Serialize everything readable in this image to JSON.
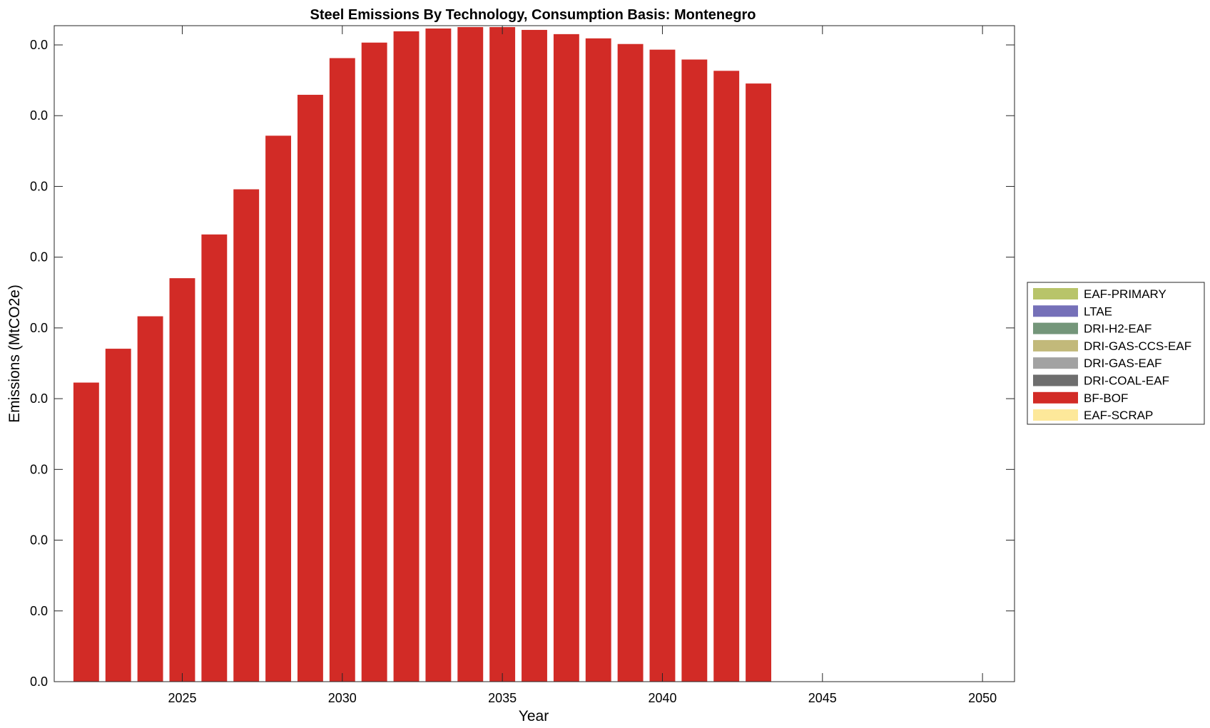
{
  "chart_data": {
    "type": "bar",
    "stacked": true,
    "title": "Steel Emissions By Technology, Consumption Basis: Montenegro",
    "xlabel": "Year",
    "ylabel": "Emissions (MtCO2e)",
    "xlim": [
      2021,
      2051
    ],
    "x_ticks": [
      2025,
      2030,
      2035,
      2040,
      2045,
      2050
    ],
    "y_tick_labels": [
      "0.0",
      "0.0",
      "0.0",
      "0.0",
      "0.0",
      "0.0",
      "0.0",
      "0.0",
      "0.0",
      "0.0"
    ],
    "ylim": [
      0,
      0.0465
    ],
    "grid": false,
    "legend_position": "right",
    "categories": [
      2022,
      2023,
      2024,
      2025,
      2026,
      2027,
      2028,
      2029,
      2030,
      2031,
      2032,
      2033,
      2034,
      2035,
      2036,
      2037,
      2038,
      2039,
      2040,
      2041,
      2042,
      2043
    ],
    "series": [
      {
        "name": "EAF-PRIMARY",
        "color": "#b8c46a",
        "values": [
          0,
          0,
          0,
          0,
          0,
          0,
          0,
          0,
          0,
          0,
          0,
          0,
          0,
          0,
          0,
          0,
          0,
          0,
          0,
          0,
          0,
          0
        ]
      },
      {
        "name": "LTAE",
        "color": "#7570b8",
        "values": [
          0,
          0,
          0,
          0,
          0,
          0,
          0,
          0,
          0,
          0,
          0,
          0,
          0,
          0,
          0,
          0,
          0,
          0,
          0,
          0,
          0,
          0
        ]
      },
      {
        "name": "DRI-H2-EAF",
        "color": "#74967a",
        "values": [
          0,
          0,
          0,
          0,
          0,
          0,
          0,
          0,
          0,
          0,
          0,
          0,
          0,
          0,
          0,
          0,
          0,
          0,
          0,
          0,
          0,
          0
        ]
      },
      {
        "name": "DRI-GAS-CCS-EAF",
        "color": "#c2b97a",
        "values": [
          0,
          0,
          0,
          0,
          0,
          0,
          0,
          0,
          0,
          0,
          0,
          0,
          0,
          0,
          0,
          0,
          0,
          0,
          0,
          0,
          0,
          0
        ]
      },
      {
        "name": "DRI-GAS-EAF",
        "color": "#a2a2a2",
        "values": [
          0,
          0,
          0,
          0,
          0,
          0,
          0,
          0,
          0,
          0,
          0,
          0,
          0,
          0,
          0,
          0,
          0,
          0,
          0,
          0,
          0,
          0
        ]
      },
      {
        "name": "DRI-COAL-EAF",
        "color": "#6e6e6e",
        "values": [
          0,
          0,
          0,
          0,
          0,
          0,
          0,
          0,
          0,
          0,
          0,
          0,
          0,
          0,
          0,
          0,
          0,
          0,
          0,
          0,
          0,
          0
        ]
      },
      {
        "name": "BF-BOF",
        "color": "#d22b26",
        "values": [
          0.0212,
          0.0236,
          0.0259,
          0.0286,
          0.0317,
          0.0349,
          0.0387,
          0.0416,
          0.0442,
          0.0453,
          0.0461,
          0.0463,
          0.0464,
          0.0464,
          0.0462,
          0.0459,
          0.0456,
          0.0452,
          0.0448,
          0.0441,
          0.0433,
          0.0424
        ]
      },
      {
        "name": "EAF-SCRAP",
        "color": "#fde89a",
        "values": [
          0,
          0,
          0,
          0,
          0,
          0,
          0,
          0,
          0,
          0,
          0,
          0,
          0,
          0,
          0,
          0,
          0,
          0,
          0,
          0,
          0,
          0
        ]
      }
    ]
  }
}
